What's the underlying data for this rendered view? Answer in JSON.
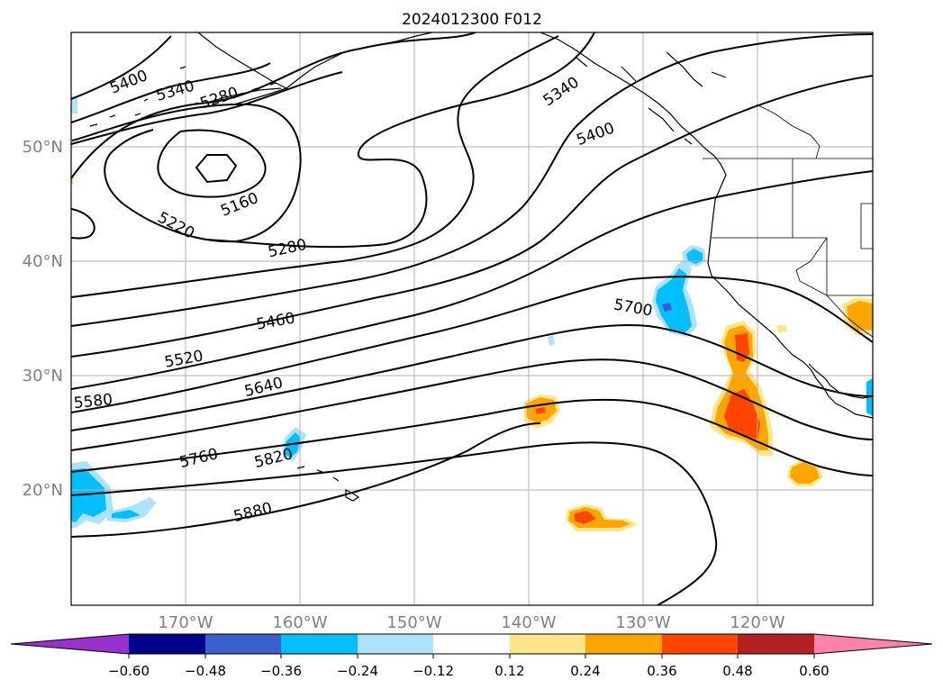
{
  "map": {
    "title": "2024012300 F012",
    "lat_labels": [
      "50°N",
      "40°N",
      "30°N",
      "20°N"
    ],
    "lon_labels": [
      "170°W",
      "160°W",
      "150°W",
      "140°W",
      "130°W",
      "120°W"
    ],
    "contour_labels": [
      "5400",
      "5340",
      "5280",
      "5160",
      "5220",
      "5280",
      "5460",
      "5520",
      "5580",
      "5640",
      "5760",
      "5820",
      "5880",
      "5340",
      "5400",
      "5700"
    ],
    "contour_color": "#000000",
    "grid_color": "#b0b0b0",
    "tick_label_color": "#808080"
  },
  "colorbar": {
    "ticks": [
      "−0.60",
      "−0.48",
      "−0.36",
      "−0.24",
      "−0.12",
      "0.12",
      "0.24",
      "0.36",
      "0.48",
      "0.60"
    ],
    "colors": [
      "#9932cc",
      "#00008b",
      "#3b5fcd",
      "#00bfff",
      "#ade2f8",
      "#ffffff",
      "#ffe58a",
      "#ffa500",
      "#ff4500",
      "#b22222",
      "#ff82ab"
    ]
  }
}
